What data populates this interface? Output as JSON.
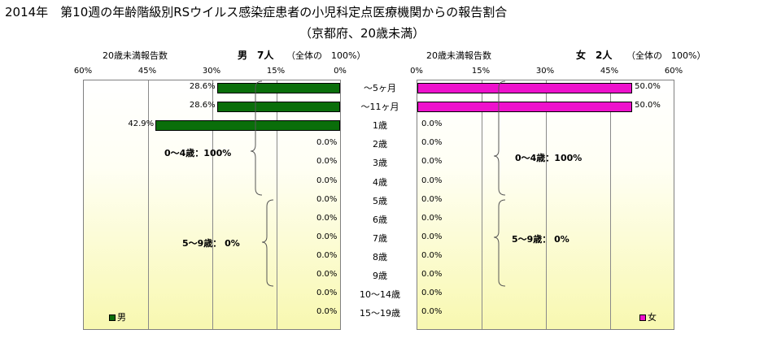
{
  "title": {
    "line1": "2014年　第10週の年齢階級別RSウイルス感染症患者の小児科定点医療機関からの報告割合",
    "line2": "（京都府、20歳未満）"
  },
  "left_panel": {
    "subtitle": "20歳未満報告数",
    "header": "男　7人",
    "total": "（全体の　100%）",
    "ticks": [
      "60%",
      "45%",
      "30%",
      "15%",
      "0%"
    ],
    "group_labels": [
      "0～4歳：100%",
      "5～9歳：  0%"
    ],
    "legend": "男"
  },
  "right_panel": {
    "subtitle": "20歳未満報告数",
    "header": "女　2人",
    "total": "（全体の　100%）",
    "ticks": [
      "0%",
      "15%",
      "30%",
      "45%",
      "60%"
    ],
    "group_labels": [
      "0～4歳：100%",
      "5～9歳：  0%"
    ],
    "legend": "女"
  },
  "chart_data": [
    {
      "type": "bar",
      "orientation": "horizontal",
      "direction": "right-to-left",
      "series": [
        {
          "name": "男",
          "color": "#0a6e0a",
          "values": [
            28.6,
            28.6,
            42.9,
            0,
            0,
            0,
            0,
            0,
            0,
            0,
            0,
            0,
            0
          ],
          "labels": [
            "28.6%",
            "28.6%",
            "42.9%",
            "0.0%",
            "0.0%",
            "0.0%",
            "0.0%",
            "0.0%",
            "0.0%",
            "0.0%",
            "0.0%",
            "0.0%",
            "0.0%"
          ]
        }
      ],
      "categories": [
        "～5ヶ月",
        "～11ヶ月",
        "1歳",
        "2歳",
        "3歳",
        "4歳",
        "5歳",
        "6歳",
        "7歳",
        "8歳",
        "9歳",
        "10～14歳",
        "15～19歳"
      ],
      "xlim": [
        0,
        60
      ],
      "grid": true
    },
    {
      "type": "bar",
      "orientation": "horizontal",
      "direction": "left-to-right",
      "series": [
        {
          "name": "女",
          "color": "#ee11cc",
          "values": [
            50.0,
            50.0,
            0,
            0,
            0,
            0,
            0,
            0,
            0,
            0,
            0,
            0,
            0
          ],
          "labels": [
            "50.0%",
            "50.0%",
            "0.0%",
            "0.0%",
            "0.0%",
            "0.0%",
            "0.0%",
            "0.0%",
            "0.0%",
            "0.0%",
            "0.0%",
            "0.0%",
            "0.0%"
          ]
        }
      ],
      "categories": [
        "～5ヶ月",
        "～11ヶ月",
        "1歳",
        "2歳",
        "3歳",
        "4歳",
        "5歳",
        "6歳",
        "7歳",
        "8歳",
        "9歳",
        "10～14歳",
        "15～19歳"
      ],
      "xlim": [
        0,
        60
      ],
      "grid": true
    }
  ]
}
